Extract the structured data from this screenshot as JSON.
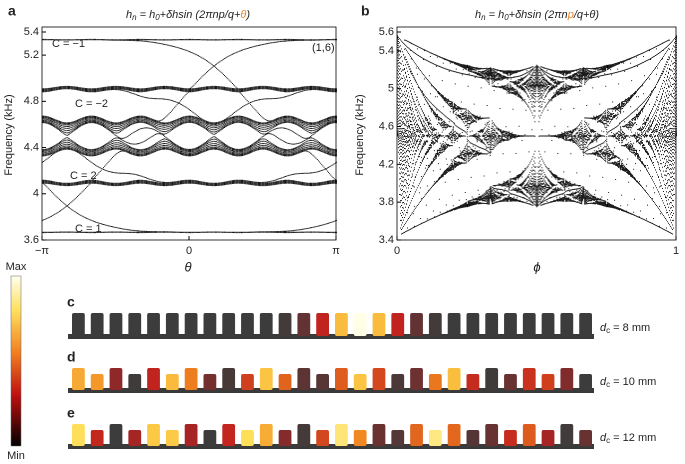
{
  "panels": [
    {
      "letter": "a",
      "title": [
        "h",
        "n",
        " = h",
        "0",
        "+δhsin (2πnp/q+",
        "θ",
        ")"
      ],
      "ylabel": "Frequency (kHz)",
      "xlabel": "θ",
      "yticks": [
        3.6,
        4,
        4.4,
        4.8,
        5.2,
        5.4
      ],
      "xticks": [
        "−π",
        "0",
        "π"
      ],
      "annotations": [
        "C = −1",
        "(1,6)",
        "C = −2",
        "C = 2",
        "C = 1"
      ]
    },
    {
      "letter": "b",
      "title": [
        "h",
        "n",
        " = h",
        "0",
        "+δhsin (2πn",
        "p",
        "/q+θ)"
      ],
      "ylabel": "Frequency (kHz)",
      "xlabel": "ϕ",
      "yticks": [
        3.4,
        3.8,
        4.2,
        4.6,
        5,
        5.4,
        5.6
      ],
      "xticks": [
        0,
        1
      ]
    }
  ],
  "colorbar": {
    "max": "Max",
    "min": "Min"
  },
  "rows": [
    {
      "letter": "c",
      "label": [
        "d",
        "c",
        " = 8 mm"
      ]
    },
    {
      "letter": "d",
      "label": [
        "d",
        "c",
        " = 10 mm"
      ]
    },
    {
      "letter": "e",
      "label": [
        "d",
        "c",
        " = 12 mm"
      ]
    }
  ]
}
